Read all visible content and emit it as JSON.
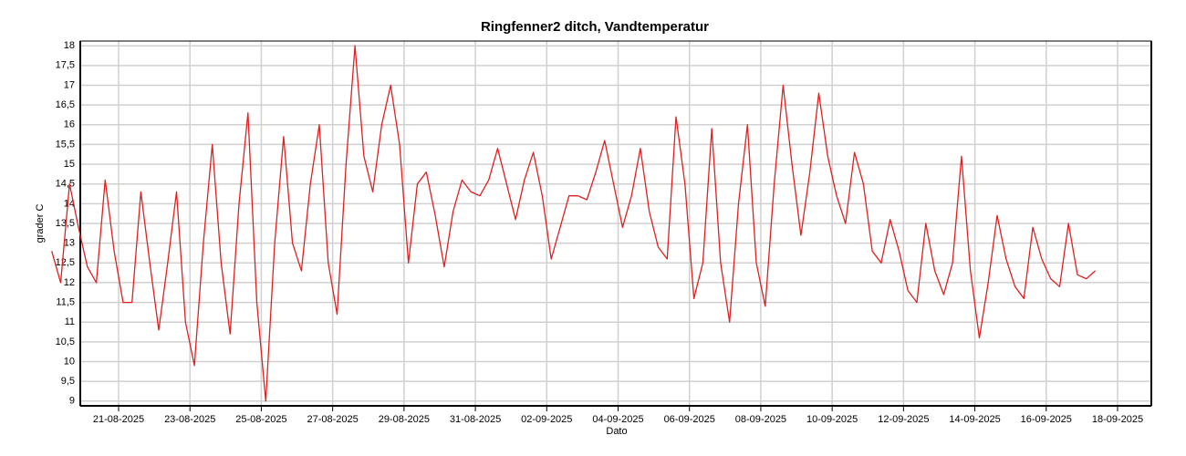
{
  "chart_data": {
    "type": "line",
    "title": "Ringfenner2 ditch, Vandtemperatur",
    "x_label": "Dato",
    "y_label": "grader C",
    "color": "#e02020",
    "grid": true,
    "x": [
      "20-08-2025",
      "20-08-2025",
      "20-08-2025",
      "20-08-2025",
      "21-08-2025",
      "21-08-2025",
      "21-08-2025",
      "21-08-2025",
      "22-08-2025",
      "22-08-2025",
      "22-08-2025",
      "22-08-2025",
      "23-08-2025",
      "23-08-2025",
      "23-08-2025",
      "23-08-2025",
      "24-08-2025",
      "24-08-2025",
      "24-08-2025",
      "24-08-2025",
      "25-08-2025",
      "25-08-2025",
      "25-08-2025",
      "25-08-2025",
      "26-08-2025",
      "26-08-2025",
      "26-08-2025",
      "26-08-2025",
      "27-08-2025",
      "27-08-2025",
      "27-08-2025",
      "27-08-2025",
      "28-08-2025",
      "28-08-2025",
      "28-08-2025",
      "28-08-2025",
      "29-08-2025",
      "29-08-2025",
      "29-08-2025",
      "29-08-2025",
      "30-08-2025",
      "30-08-2025",
      "30-08-2025",
      "30-08-2025",
      "31-08-2025",
      "31-08-2025",
      "31-08-2025",
      "31-08-2025",
      "01-09-2025",
      "01-09-2025",
      "01-09-2025",
      "01-09-2025",
      "02-09-2025",
      "02-09-2025",
      "02-09-2025",
      "02-09-2025",
      "03-09-2025",
      "03-09-2025",
      "03-09-2025",
      "03-09-2025",
      "04-09-2025",
      "04-09-2025",
      "04-09-2025",
      "04-09-2025",
      "05-09-2025",
      "05-09-2025",
      "05-09-2025",
      "05-09-2025",
      "06-09-2025",
      "06-09-2025",
      "06-09-2025",
      "06-09-2025",
      "07-09-2025",
      "07-09-2025",
      "07-09-2025",
      "07-09-2025",
      "08-09-2025",
      "08-09-2025",
      "08-09-2025",
      "08-09-2025",
      "09-09-2025",
      "09-09-2025",
      "09-09-2025",
      "09-09-2025",
      "10-09-2025",
      "10-09-2025",
      "10-09-2025",
      "10-09-2025",
      "11-09-2025",
      "11-09-2025",
      "11-09-2025",
      "11-09-2025",
      "12-09-2025",
      "12-09-2025",
      "12-09-2025",
      "12-09-2025",
      "13-09-2025",
      "13-09-2025",
      "13-09-2025",
      "13-09-2025",
      "14-09-2025",
      "14-09-2025",
      "14-09-2025",
      "14-09-2025",
      "15-09-2025",
      "15-09-2025",
      "15-09-2025",
      "15-09-2025",
      "16-09-2025",
      "16-09-2025",
      "16-09-2025",
      "16-09-2025",
      "17-09-2025",
      "17-09-2025",
      "17-09-2025",
      "17-09-2025",
      "18-09-2025",
      "18-09-2025",
      "18-09-2025",
      "18-09-2025"
    ],
    "values": [
      12.8,
      12.0,
      14.5,
      13.4,
      12.4,
      12.0,
      14.6,
      12.8,
      11.5,
      11.5,
      14.3,
      12.5,
      10.8,
      12.5,
      14.3,
      11.0,
      9.9,
      13.0,
      15.5,
      12.5,
      10.7,
      14.0,
      16.3,
      11.5,
      9.0,
      13.0,
      15.7,
      13.0,
      12.3,
      14.5,
      16.0,
      12.5,
      11.2,
      15.0,
      18.0,
      15.2,
      14.3,
      16.0,
      17.0,
      15.5,
      12.5,
      14.5,
      14.8,
      13.7,
      12.4,
      13.8,
      14.6,
      14.3,
      14.2,
      14.6,
      15.4,
      14.5,
      13.6,
      14.6,
      15.3,
      14.2,
      12.6,
      13.4,
      14.2,
      14.2,
      14.1,
      14.8,
      15.6,
      14.5,
      13.4,
      14.2,
      15.4,
      13.8,
      12.9,
      12.6,
      16.2,
      14.5,
      11.6,
      12.5,
      15.9,
      12.5,
      11.0,
      14.0,
      16.0,
      12.5,
      11.4,
      14.5,
      17.0,
      15.0,
      13.2,
      14.8,
      16.8,
      15.2,
      14.2,
      13.5,
      15.3,
      14.5,
      12.8,
      12.5,
      13.6,
      12.8,
      11.8,
      11.5,
      13.5,
      12.3,
      11.7,
      12.5,
      15.2,
      12.3,
      10.6,
      12.0,
      13.7,
      12.6,
      11.9,
      11.6,
      13.4,
      12.6,
      12.1,
      11.9,
      13.5,
      12.2,
      12.1,
      12.3,
      null,
      null
    ],
    "xticks": [
      "21-08-2025",
      "23-08-2025",
      "25-08-2025",
      "27-08-2025",
      "29-08-2025",
      "31-08-2025",
      "02-09-2025",
      "04-09-2025",
      "06-09-2025",
      "08-09-2025",
      "10-09-2025",
      "12-09-2025",
      "14-09-2025",
      "16-09-2025",
      "18-09-2025"
    ],
    "ylim": [
      8.88,
      18.12
    ],
    "yticks": [
      9,
      {
        "value": 9.5,
        "label": "9,5"
      },
      10,
      {
        "value": 10.5,
        "label": "10,5"
      },
      11,
      {
        "value": 11.5,
        "label": "11,5"
      },
      12,
      {
        "value": 12.5,
        "label": "12,5"
      },
      13,
      {
        "value": 13.5,
        "label": "13,5"
      },
      14,
      {
        "value": 14.5,
        "label": "14,5"
      },
      15,
      {
        "value": 15.5,
        "label": "15,5"
      },
      16,
      {
        "value": 16.5,
        "label": "16,5"
      },
      17,
      {
        "value": 17.5,
        "label": "17,5"
      },
      18
    ]
  }
}
